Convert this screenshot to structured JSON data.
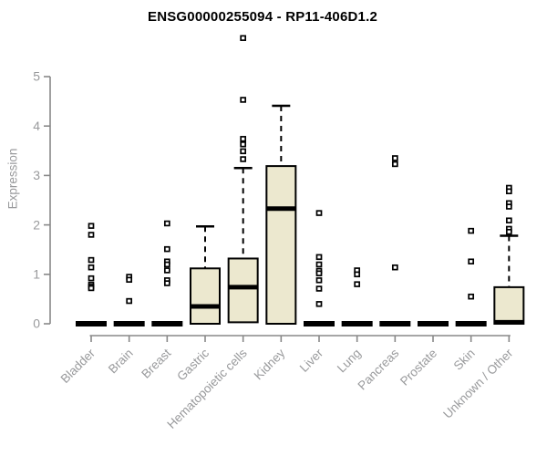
{
  "chart_data": {
    "type": "boxplot",
    "title": "ENSG00000255094 - RP11-406D1.2",
    "ylabel": "Expression",
    "xlabel": "",
    "ylim": [
      0,
      5
    ],
    "yticks": [
      0,
      1,
      2,
      3,
      4,
      5
    ],
    "legend": "none",
    "grid": false,
    "categories": [
      "Bladder",
      "Brain",
      "Breast",
      "Gastric",
      "Hematopoietic cells",
      "Kidney",
      "Liver",
      "Lung",
      "Pancreas",
      "Prostate",
      "Skin",
      "Unknown / Other"
    ],
    "boxes": [
      {
        "category": "Bladder",
        "q1": 0,
        "median": 0,
        "q3": 0,
        "whisker_low": 0,
        "whisker_high": 0,
        "outliers": [
          1.98,
          1.8,
          1.29,
          1.14,
          0.92,
          0.79,
          0.75,
          0.72
        ]
      },
      {
        "category": "Brain",
        "q1": 0,
        "median": 0,
        "q3": 0,
        "whisker_low": 0,
        "whisker_high": 0,
        "outliers": [
          0.95,
          0.89,
          0.46
        ]
      },
      {
        "category": "Breast",
        "q1": 0,
        "median": 0,
        "q3": 0,
        "whisker_low": 0,
        "whisker_high": 0,
        "outliers": [
          2.03,
          1.51,
          1.26,
          1.2,
          1.08,
          0.88,
          0.82
        ]
      },
      {
        "category": "Gastric",
        "q1": 0,
        "median": 0.35,
        "q3": 1.12,
        "whisker_low": 0,
        "whisker_high": 1.97,
        "outliers": []
      },
      {
        "category": "Hematopoietic cells",
        "q1": 0.03,
        "median": 0.74,
        "q3": 1.32,
        "whisker_low": 0.03,
        "whisker_high": 3.15,
        "outliers": [
          5.78,
          4.53,
          3.74,
          3.63,
          3.49,
          3.33
        ]
      },
      {
        "category": "Kidney",
        "q1": 0,
        "median": 2.33,
        "q3": 3.19,
        "whisker_low": 0,
        "whisker_high": 4.41,
        "outliers": []
      },
      {
        "category": "Liver",
        "q1": 0,
        "median": 0,
        "q3": 0,
        "whisker_low": 0,
        "whisker_high": 0,
        "outliers": [
          2.24,
          1.35,
          1.2,
          1.07,
          1.02,
          0.88,
          0.71,
          0.4
        ]
      },
      {
        "category": "Lung",
        "q1": 0,
        "median": 0,
        "q3": 0,
        "whisker_low": 0,
        "whisker_high": 0,
        "outliers": [
          1.08,
          1.0,
          0.8
        ]
      },
      {
        "category": "Pancreas",
        "q1": 0,
        "median": 0,
        "q3": 0,
        "whisker_low": 0,
        "whisker_high": 0,
        "outliers": [
          3.35,
          3.23,
          1.14
        ]
      },
      {
        "category": "Prostate",
        "q1": 0,
        "median": 0,
        "q3": 0,
        "whisker_low": 0,
        "whisker_high": 0,
        "outliers": []
      },
      {
        "category": "Skin",
        "q1": 0,
        "median": 0,
        "q3": 0,
        "whisker_low": 0,
        "whisker_high": 0,
        "outliers": [
          1.88,
          1.26,
          0.55
        ]
      },
      {
        "category": "Unknown / Other",
        "q1": 0,
        "median": 0.03,
        "q3": 0.74,
        "whisker_low": 0,
        "whisker_high": 1.78,
        "outliers": [
          2.75,
          2.68,
          2.44,
          2.37,
          2.09,
          1.92,
          1.86
        ]
      }
    ],
    "colors": {
      "box_fill": "#ece8cf",
      "box_stroke": "#000000",
      "median": "#000000",
      "whisker": "#000000",
      "outlier_stroke": "#000000",
      "axis": "#888888",
      "tick_label": "#999a9c",
      "title": "#000000"
    }
  }
}
